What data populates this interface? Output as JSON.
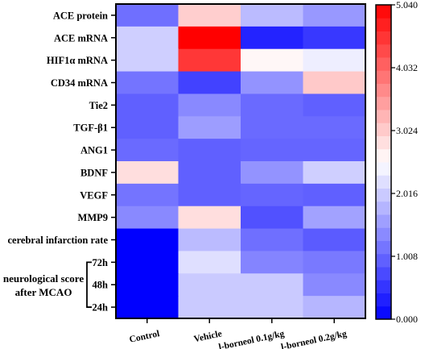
{
  "chart_data": {
    "type": "heatmap",
    "rows": [
      "ACE protein",
      "ACE mRNA",
      "HIF1α mRNA",
      "CD34 mRNA",
      "Tie2",
      "TGF-β1",
      "ANG1",
      "BDNF",
      "VEGF",
      "MMP9",
      "cerebral infarction rate",
      "72h",
      "48h",
      "24h"
    ],
    "columns": [
      "Control",
      "Vehicle",
      "l-borneol 0.1g/kg",
      "l-borneol 0.2g/kg"
    ],
    "row_group": {
      "label_lines": [
        "neurological score",
        "after MCAO"
      ],
      "members": [
        "72h",
        "48h",
        "24h"
      ]
    },
    "values": [
      [
        1.1,
        3.0,
        1.85,
        1.5
      ],
      [
        2.05,
        5.04,
        0.35,
        0.55
      ],
      [
        2.05,
        4.5,
        2.6,
        2.35
      ],
      [
        1.15,
        0.65,
        1.45,
        3.05
      ],
      [
        0.95,
        1.35,
        1.05,
        0.95
      ],
      [
        0.95,
        1.55,
        1.05,
        1.05
      ],
      [
        1.05,
        0.95,
        1.0,
        1.0
      ],
      [
        2.85,
        0.95,
        1.45,
        2.05
      ],
      [
        1.15,
        0.95,
        1.0,
        0.95
      ],
      [
        1.35,
        2.85,
        0.8,
        1.6
      ],
      [
        0.0,
        1.85,
        1.1,
        0.9
      ],
      [
        0.0,
        2.2,
        1.3,
        1.2
      ],
      [
        0.0,
        2.0,
        2.0,
        1.35
      ],
      [
        0.0,
        2.0,
        2.0,
        1.8
      ]
    ],
    "colorbar": {
      "min": 0.0,
      "max": 5.04,
      "ticks": [
        "0.000",
        "1.008",
        "2.016",
        "3.024",
        "4.032",
        "5.040"
      ],
      "colors": {
        "low": "#0000ff",
        "mid": "#ffffff",
        "high": "#ff0000"
      }
    }
  }
}
